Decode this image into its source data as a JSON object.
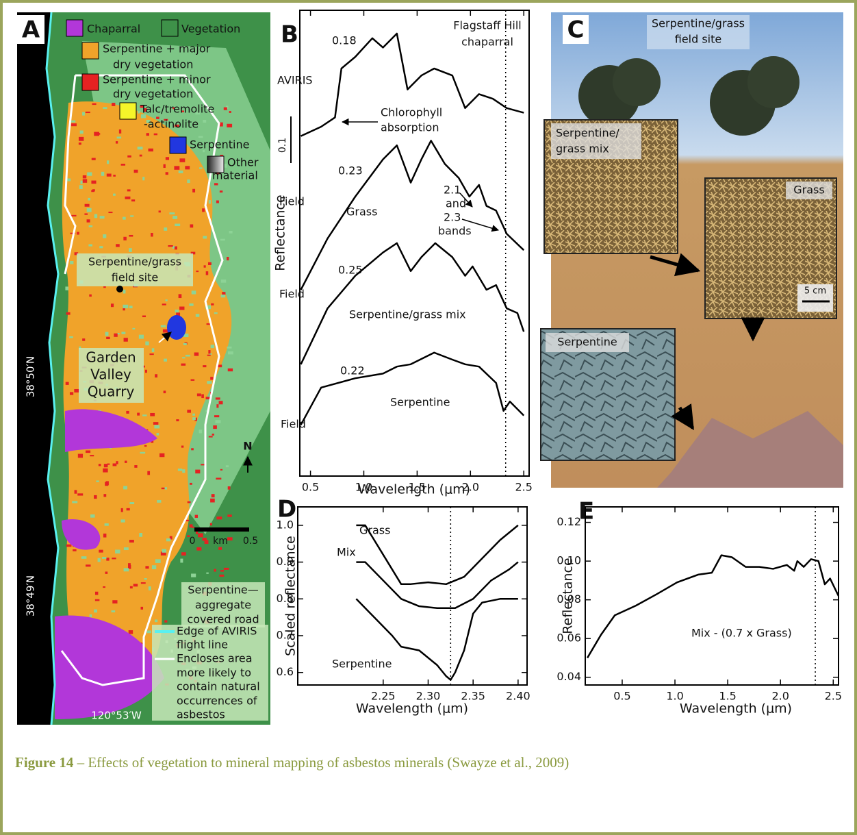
{
  "panel_a": {
    "label": "A",
    "legend": [
      {
        "lines": [
          "Chaparral"
        ]
      },
      {
        "lines": [
          "Vegetation"
        ]
      },
      {
        "lines": [
          "Serpentine + major",
          "dry vegetation"
        ]
      },
      {
        "lines": [
          "Serpentine + minor",
          "dry vegetation"
        ]
      },
      {
        "lines": [
          "Talc/tremolite",
          "-actinolite"
        ]
      },
      {
        "lines": [
          "Serpentine"
        ]
      },
      {
        "lines": [
          "Other",
          "material"
        ]
      }
    ],
    "site": [
      "Serpentine/grass",
      "field site"
    ],
    "quarry": [
      "Garden",
      "Valley",
      "Quarry"
    ],
    "north": "N",
    "scale": [
      "0",
      "km",
      "0.5"
    ],
    "road": [
      "Serpentine—",
      "aggregate",
      "covered road"
    ],
    "edge": [
      "Edge of AVIRIS",
      "flight line"
    ],
    "encloses": [
      "Encloses area",
      "more likely to",
      "contain natural",
      "occurrences of",
      "asbestos"
    ],
    "lat": [
      "38°50′N",
      "38°49′N"
    ],
    "lon": "120°53′W"
  },
  "panel_c": {
    "label": "C",
    "site": [
      "Serpentine/grass",
      "field site"
    ],
    "mix": [
      "Serpentine/",
      "grass mix"
    ],
    "grass": "Grass",
    "scale": "5 cm",
    "serpentine": "Serpentine"
  },
  "chart_data": [
    {
      "type": "line",
      "label": "B",
      "y_label": "Reflectance",
      "x_label": "Wavelength (μm)",
      "xlim": [
        0.4,
        2.55
      ],
      "ylim": [
        0,
        1
      ],
      "xticks": [
        0.5,
        {
          "value": 1,
          "label": "1.0"
        },
        1.5,
        {
          "value": 2,
          "label": "2.0"
        },
        2.5
      ],
      "scale_bar": 0.1,
      "reference_x": 2.33,
      "annotations": {
        "title": [
          "Flagstaff Hill",
          "chaparral"
        ],
        "aviris": "AVIRIS",
        "chlorophyll": [
          "Chlorophyll",
          "absorption"
        ],
        "field": [
          "Field",
          "Field",
          "Field"
        ],
        "grass": "Grass",
        "bands": [
          "2.1",
          "and",
          "2.3",
          "bands"
        ],
        "mix": "Serpentine/grass mix",
        "serpentine": "Serpentine",
        "levels": [
          "0.18",
          "0.23",
          "0.25",
          "0.22"
        ]
      },
      "series": [
        {
          "color": "#000000",
          "x": [
            0.41,
            0.6,
            0.73,
            0.79,
            0.92,
            1.08,
            1.18,
            1.31,
            1.41,
            1.54,
            1.66,
            1.83,
            1.95,
            2.08,
            2.21,
            2.34,
            2.5
          ],
          "values": [
            0.73,
            0.75,
            0.77,
            0.875,
            0.9,
            0.94,
            0.92,
            0.95,
            0.83,
            0.86,
            0.875,
            0.86,
            0.79,
            0.82,
            0.81,
            0.79,
            0.78
          ]
        },
        {
          "color": "#000000",
          "x": [
            0.41,
            0.66,
            0.92,
            1.18,
            1.31,
            1.44,
            1.54,
            1.63,
            1.76,
            1.89,
            1.99,
            2.08,
            2.15,
            2.24,
            2.34,
            2.5
          ],
          "values": [
            0.4,
            0.51,
            0.6,
            0.68,
            0.71,
            0.63,
            0.68,
            0.72,
            0.67,
            0.64,
            0.6,
            0.625,
            0.58,
            0.57,
            0.52,
            0.485
          ]
        },
        {
          "color": "#000000",
          "x": [
            0.41,
            0.66,
            0.92,
            1.18,
            1.31,
            1.44,
            1.54,
            1.67,
            1.83,
            1.95,
            2.02,
            2.15,
            2.24,
            2.34,
            2.44,
            2.5
          ],
          "values": [
            0.24,
            0.36,
            0.43,
            0.48,
            0.5,
            0.44,
            0.47,
            0.5,
            0.47,
            0.43,
            0.45,
            0.4,
            0.41,
            0.36,
            0.35,
            0.31
          ]
        },
        {
          "color": "#000000",
          "x": [
            0.41,
            0.6,
            0.92,
            1.18,
            1.31,
            1.44,
            1.66,
            1.83,
            1.95,
            2.08,
            2.24,
            2.31,
            2.37,
            2.5
          ],
          "values": [
            0.11,
            0.19,
            0.21,
            0.22,
            0.235,
            0.24,
            0.265,
            0.25,
            0.24,
            0.235,
            0.2,
            0.14,
            0.16,
            0.13
          ]
        }
      ]
    },
    {
      "type": "line",
      "label": "D",
      "y_label": "Scaled reflectance",
      "x_label": "Wavelength (μm)",
      "xlim": [
        2.155,
        2.41
      ],
      "ylim": [
        0.566,
        1.05
      ],
      "xticks": [
        2.25,
        {
          "value": 2.3,
          "label": "2.30"
        },
        2.35,
        {
          "value": 2.4,
          "label": "2.40"
        }
      ],
      "yticks": [
        0.6,
        0.7,
        0.8,
        0.9,
        {
          "value": 1,
          "label": "1.0"
        }
      ],
      "reference_x": 2.325,
      "series": [
        {
          "name": "Grass",
          "color": "#000000",
          "x": [
            2.22,
            2.23,
            2.25,
            2.27,
            2.28,
            2.3,
            2.32,
            2.34,
            2.36,
            2.38,
            2.4
          ],
          "values": [
            1.0,
            1.0,
            0.92,
            0.84,
            0.84,
            0.845,
            0.84,
            0.86,
            0.91,
            0.96,
            1.0
          ]
        },
        {
          "name": "Mix",
          "color": "#000000",
          "x": [
            2.22,
            2.23,
            2.25,
            2.27,
            2.29,
            2.31,
            2.33,
            2.35,
            2.37,
            2.39,
            2.4
          ],
          "values": [
            0.9,
            0.9,
            0.85,
            0.8,
            0.78,
            0.775,
            0.775,
            0.8,
            0.85,
            0.88,
            0.9
          ]
        },
        {
          "name": "Serpentine",
          "color": "#000000",
          "x": [
            2.22,
            2.24,
            2.26,
            2.27,
            2.29,
            2.31,
            2.32,
            2.325,
            2.33,
            2.34,
            2.35,
            2.36,
            2.38,
            2.4
          ],
          "values": [
            0.8,
            0.75,
            0.7,
            0.67,
            0.66,
            0.62,
            0.59,
            0.58,
            0.6,
            0.66,
            0.76,
            0.79,
            0.8,
            0.8
          ]
        }
      ]
    },
    {
      "type": "line",
      "label": "E",
      "y_label": "Reflectance",
      "x_label": "Wavelength (μm)",
      "xlim": [
        0.15,
        2.55
      ],
      "ylim": [
        0.036,
        0.128
      ],
      "xticks": [
        0.5,
        {
          "value": 1,
          "label": "1.0"
        },
        1.5,
        {
          "value": 2,
          "label": "2.0"
        },
        2.5
      ],
      "yticks": [
        0.04,
        0.06,
        0.08,
        {
          "value": 0.1,
          "label": "0.10"
        },
        0.12
      ],
      "reference_x": 2.33,
      "series": [
        {
          "name": "Mix - (0.7 x Grass)",
          "color": "#000000",
          "x": [
            0.17,
            0.3,
            0.43,
            0.63,
            0.83,
            1.02,
            1.22,
            1.35,
            1.44,
            1.54,
            1.67,
            1.8,
            1.93,
            2.06,
            2.13,
            2.16,
            2.22,
            2.29,
            2.36,
            2.42,
            2.47,
            2.55
          ],
          "values": [
            0.05,
            0.062,
            0.072,
            0.077,
            0.083,
            0.089,
            0.093,
            0.094,
            0.103,
            0.102,
            0.097,
            0.097,
            0.096,
            0.098,
            0.095,
            0.1,
            0.097,
            0.101,
            0.1,
            0.088,
            0.091,
            0.082
          ]
        }
      ]
    }
  ],
  "caption": {
    "label": "Figure 14",
    "text": "– Effects of vegetation to mineral mapping of asbestos minerals (Swayze et al., 2009)"
  }
}
